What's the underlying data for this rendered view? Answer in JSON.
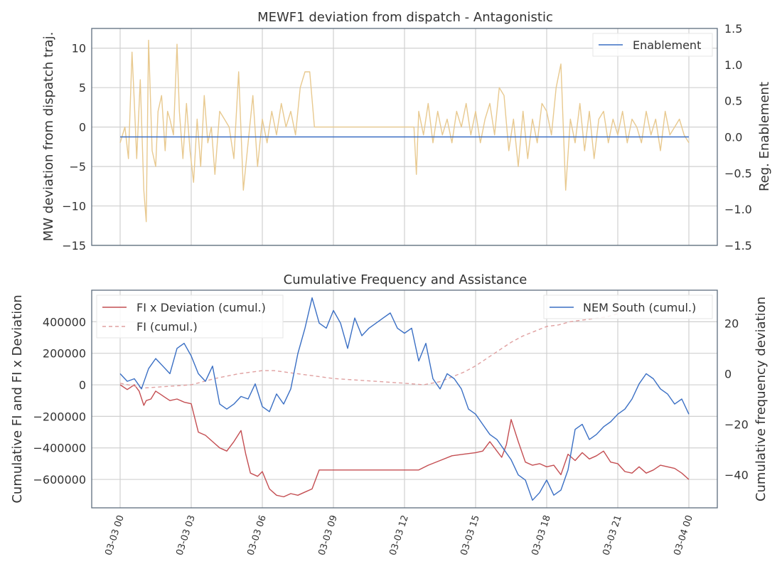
{
  "chart_data": [
    {
      "type": "line",
      "title": "MEWF1 deviation from dispatch - Antagonistic",
      "ylabel": "MW deviation from dispatch traj.",
      "y2label": "Reg. Enablement",
      "ylim": [
        -15,
        12.5
      ],
      "y2lim": [
        -1.5,
        1.5
      ],
      "yticks": [
        10,
        5,
        0,
        -5,
        -10,
        -15
      ],
      "yticklabels": [
        "10",
        "5",
        "0",
        "−5",
        "−10",
        "−15"
      ],
      "y2ticks": [
        1.5,
        1.0,
        0.5,
        0.0,
        -0.5,
        -1.0,
        -1.5
      ],
      "y2ticklabels": [
        "1.5",
        "1.0",
        "0.5",
        "0.0",
        "−0.5",
        "−1.0",
        "−1.5"
      ],
      "grid": true,
      "legend_position": "top-right",
      "series": [
        {
          "name": "",
          "axis": "left",
          "color": "#e8c98f",
          "x_hours": [
            0,
            0.2,
            0.35,
            0.5,
            0.6,
            0.7,
            0.85,
            1.0,
            1.1,
            1.2,
            1.35,
            1.5,
            1.6,
            1.75,
            1.9,
            2.0,
            2.1,
            2.25,
            2.4,
            2.5,
            2.65,
            2.8,
            2.95,
            3.1,
            3.25,
            3.4,
            3.55,
            3.7,
            3.85,
            4.0,
            4.2,
            4.4,
            4.6,
            4.8,
            5.0,
            5.2,
            5.4,
            5.6,
            5.8,
            6.0,
            6.2,
            6.4,
            6.6,
            6.8,
            7.0,
            7.2,
            7.4,
            7.6,
            7.8,
            8.0,
            8.2,
            8.4,
            8.5,
            9.0,
            10.0,
            11.0,
            12.0,
            12.4,
            12.5,
            12.6,
            12.8,
            13.0,
            13.2,
            13.4,
            13.6,
            13.8,
            14.0,
            14.2,
            14.4,
            14.6,
            14.8,
            15.0,
            15.2,
            15.4,
            15.6,
            15.8,
            16.0,
            16.2,
            16.4,
            16.6,
            16.8,
            17.0,
            17.2,
            17.4,
            17.6,
            17.8,
            18.0,
            18.2,
            18.4,
            18.6,
            18.8,
            19.0,
            19.2,
            19.4,
            19.6,
            19.8,
            20.0,
            20.2,
            20.4,
            20.6,
            20.8,
            21.0,
            21.2,
            21.4,
            21.6,
            21.8,
            22.0,
            22.2,
            22.4,
            22.6,
            22.8,
            23.0,
            23.2,
            23.4,
            23.6,
            23.8,
            24.0
          ],
          "values": [
            -2,
            0,
            -4,
            9.5,
            3,
            -4,
            6,
            -8,
            -12,
            11,
            -3,
            -5,
            2,
            4,
            -3,
            2,
            1,
            -1,
            10.5,
            2,
            -4,
            3,
            -3,
            -7,
            1,
            -5,
            4,
            -2,
            0,
            -6,
            2,
            1,
            0,
            -4,
            7,
            -8,
            -2,
            4,
            -5,
            1,
            -2,
            2,
            -1,
            3,
            0,
            2,
            -1,
            5,
            7,
            7,
            0,
            0,
            0,
            0,
            0,
            0,
            0,
            0,
            -6,
            2,
            -1,
            3,
            -2,
            2,
            -1,
            1,
            -2,
            2,
            0,
            3,
            -1,
            2,
            -2,
            1,
            3,
            -1,
            5,
            4,
            -3,
            1,
            -5,
            2,
            -4,
            1,
            -2,
            3,
            2,
            -1,
            5,
            8,
            -8,
            1,
            -2,
            3,
            -3,
            2,
            -4,
            1,
            2,
            -2,
            1,
            -1,
            2,
            -2,
            1,
            0,
            -2,
            2,
            -1,
            1,
            -3,
            2,
            -1,
            0,
            1,
            -1,
            -2
          ]
        },
        {
          "name": "Enablement",
          "axis": "right",
          "color": "#3a6fc4",
          "x_hours": [
            0,
            24
          ],
          "values": [
            0.0,
            0.0
          ]
        }
      ]
    },
    {
      "type": "line",
      "title": "Cumulative Frequency and Assistance",
      "ylabel": "Cumulative FI and FI x Deviation",
      "y2label": "Cumulative frequency deviation",
      "ylim": [
        -780000,
        600000
      ],
      "y2lim": [
        -53,
        33
      ],
      "yticks": [
        400000,
        200000,
        0,
        -200000,
        -400000,
        -600000
      ],
      "yticklabels": [
        "400000",
        "200000",
        "0",
        "−200000",
        "−400000",
        "−600000"
      ],
      "y2ticks": [
        20,
        0,
        -20,
        -40
      ],
      "y2ticklabels": [
        "20",
        "0",
        "−20",
        "−40"
      ],
      "x_ticks_hours": [
        0,
        3,
        6,
        9,
        12,
        15,
        18,
        21,
        24
      ],
      "xticklabels": [
        "03-03 00",
        "03-03 03",
        "03-03 06",
        "03-03 09",
        "03-03 12",
        "03-03 15",
        "03-03 18",
        "03-03 21",
        "03-04 00"
      ],
      "grid": true,
      "legend_left_position": "top-left",
      "legend_right_position": "top-right",
      "series": [
        {
          "name": "FI x Deviation (cumul.)",
          "axis": "left",
          "color": "#c44e52",
          "dash": false,
          "x_hours": [
            0,
            0.3,
            0.6,
            0.8,
            1.0,
            1.1,
            1.3,
            1.5,
            1.7,
            1.9,
            2.1,
            2.4,
            2.7,
            3.0,
            3.1,
            3.3,
            3.6,
            3.9,
            4.2,
            4.5,
            4.8,
            5.1,
            5.3,
            5.5,
            5.8,
            6.0,
            6.3,
            6.6,
            6.9,
            7.2,
            7.5,
            7.8,
            8.1,
            8.4,
            8.6,
            9,
            10,
            11,
            12,
            12.6,
            13,
            13.5,
            14,
            14.5,
            15,
            15.3,
            15.6,
            15.9,
            16.1,
            16.3,
            16.5,
            16.8,
            17.1,
            17.4,
            17.7,
            18,
            18.3,
            18.6,
            18.9,
            19.2,
            19.5,
            19.8,
            20.1,
            20.4,
            20.7,
            21,
            21.3,
            21.6,
            21.9,
            22.2,
            22.5,
            22.8,
            23.1,
            23.4,
            23.7,
            24
          ],
          "values": [
            0,
            -30000,
            0,
            -40000,
            -130000,
            -100000,
            -90000,
            -40000,
            -60000,
            -80000,
            -100000,
            -90000,
            -110000,
            -120000,
            -180000,
            -300000,
            -320000,
            -360000,
            -400000,
            -420000,
            -360000,
            -290000,
            -440000,
            -560000,
            -580000,
            -550000,
            -660000,
            -700000,
            -710000,
            -690000,
            -700000,
            -680000,
            -660000,
            -540000,
            -540000,
            -540000,
            -540000,
            -540000,
            -540000,
            -540000,
            -510000,
            -480000,
            -450000,
            -440000,
            -430000,
            -420000,
            -360000,
            -420000,
            -460000,
            -380000,
            -220000,
            -360000,
            -490000,
            -510000,
            -500000,
            -520000,
            -510000,
            -570000,
            -440000,
            -480000,
            -430000,
            -470000,
            -450000,
            -420000,
            -490000,
            -500000,
            -550000,
            -560000,
            -520000,
            -560000,
            -540000,
            -510000,
            -520000,
            -530000,
            -560000,
            -600000
          ]
        },
        {
          "name": "FI (cumul.)",
          "axis": "left",
          "color": "#e0a0a0",
          "dash": true,
          "x_hours": [
            0,
            1,
            2,
            3,
            4,
            5,
            6,
            6.5,
            7,
            8,
            9,
            10,
            11,
            12,
            12.8,
            13.5,
            14,
            14.5,
            15,
            15.5,
            16,
            16.5,
            17,
            17.5,
            18,
            18.5,
            19,
            19.5,
            20,
            20.5,
            21
          ],
          "values": [
            10000,
            -20000,
            -10000,
            0,
            40000,
            70000,
            90000,
            90000,
            80000,
            60000,
            40000,
            30000,
            20000,
            10000,
            0,
            20000,
            50000,
            80000,
            120000,
            170000,
            220000,
            270000,
            310000,
            340000,
            370000,
            380000,
            400000,
            410000,
            420000,
            430000,
            450000
          ]
        },
        {
          "name": "NEM South (cumul.)",
          "axis": "right",
          "color": "#3a6fc4",
          "dash": false,
          "x_hours": [
            0,
            0.3,
            0.6,
            0.9,
            1.2,
            1.5,
            1.8,
            2.1,
            2.4,
            2.7,
            3.0,
            3.3,
            3.6,
            3.9,
            4.2,
            4.5,
            4.8,
            5.1,
            5.4,
            5.7,
            6.0,
            6.3,
            6.6,
            6.9,
            7.2,
            7.5,
            7.8,
            8.1,
            8.4,
            8.7,
            9.0,
            9.3,
            9.6,
            9.9,
            10.2,
            10.5,
            10.8,
            11.1,
            11.4,
            11.7,
            12.0,
            12.3,
            12.6,
            12.9,
            13.2,
            13.5,
            13.8,
            14.1,
            14.4,
            14.7,
            15.0,
            15.3,
            15.6,
            15.9,
            16.2,
            16.5,
            16.8,
            17.1,
            17.4,
            17.7,
            18.0,
            18.3,
            18.6,
            18.9,
            19.2,
            19.5,
            19.8,
            20.1,
            20.4,
            20.7,
            21.0,
            21.3,
            21.6,
            21.9,
            22.2,
            22.5,
            22.8,
            23.1,
            23.4,
            23.7,
            24.0
          ],
          "values": [
            0,
            -3,
            -2,
            -6,
            2,
            6,
            3,
            0,
            10,
            12,
            7,
            0,
            -3,
            3,
            -12,
            -14,
            -12,
            -9,
            -10,
            -4,
            -13,
            -15,
            -8,
            -12,
            -6,
            8,
            18,
            30,
            20,
            18,
            25,
            20,
            10,
            22,
            15,
            18,
            20,
            22,
            24,
            18,
            16,
            18,
            5,
            12,
            -2,
            -6,
            0,
            -2,
            -6,
            -14,
            -16,
            -20,
            -24,
            -26,
            -30,
            -34,
            -40,
            -42,
            -50,
            -47,
            -42,
            -48,
            -46,
            -38,
            -22,
            -20,
            -26,
            -24,
            -21,
            -19,
            -16,
            -14,
            -10,
            -4,
            0,
            -2,
            -6,
            -8,
            -12,
            -10,
            -16
          ]
        }
      ]
    }
  ]
}
